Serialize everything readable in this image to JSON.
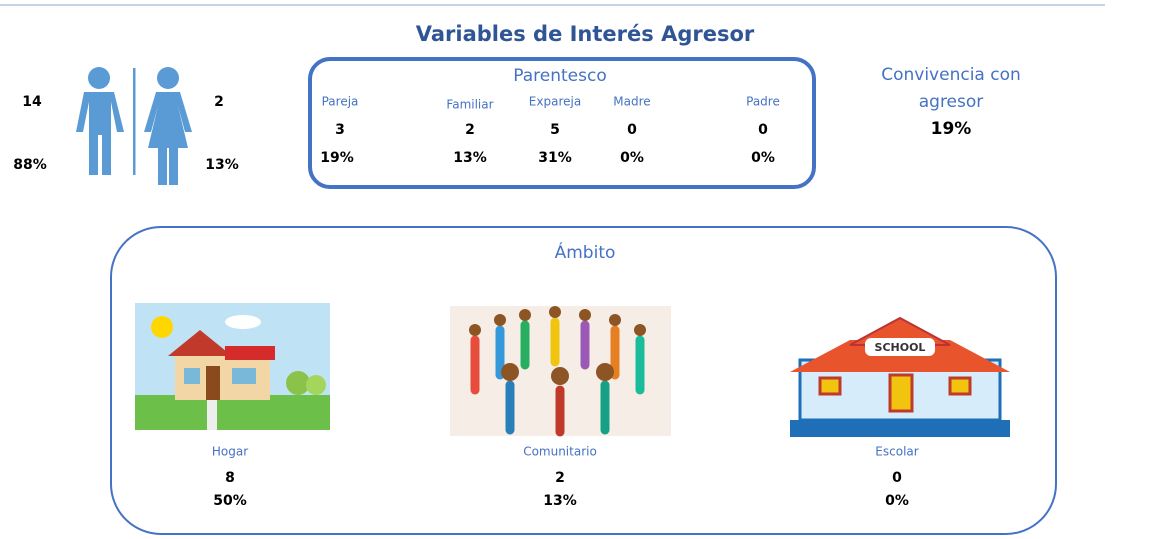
{
  "title": "Variables de Interés Agresor",
  "gender": {
    "male": {
      "count": 14,
      "percent": "88%"
    },
    "female": {
      "count": 2,
      "percent": "13%"
    }
  },
  "parentesco": {
    "title": "Parentesco",
    "items": [
      {
        "label": "Pareja",
        "count": 3,
        "percent": "19%"
      },
      {
        "label": "Familiar",
        "count": 2,
        "percent": "13%"
      },
      {
        "label": "Expareja",
        "count": 5,
        "percent": "31%"
      },
      {
        "label": "Madre",
        "count": 0,
        "percent": "0%"
      },
      {
        "label": "Padre",
        "count": 0,
        "percent": "0%"
      }
    ]
  },
  "convivencia": {
    "label_line1": "Convivencia con",
    "label_line2": "agresor",
    "percent": "19%"
  },
  "ambito": {
    "title": "Ámbito",
    "items": [
      {
        "label": "Hogar",
        "count": 8,
        "percent": "50%"
      },
      {
        "label": "Comunitario",
        "count": 2,
        "percent": "13%"
      },
      {
        "label": "Escolar",
        "count": 0,
        "percent": "0%"
      }
    ]
  }
}
